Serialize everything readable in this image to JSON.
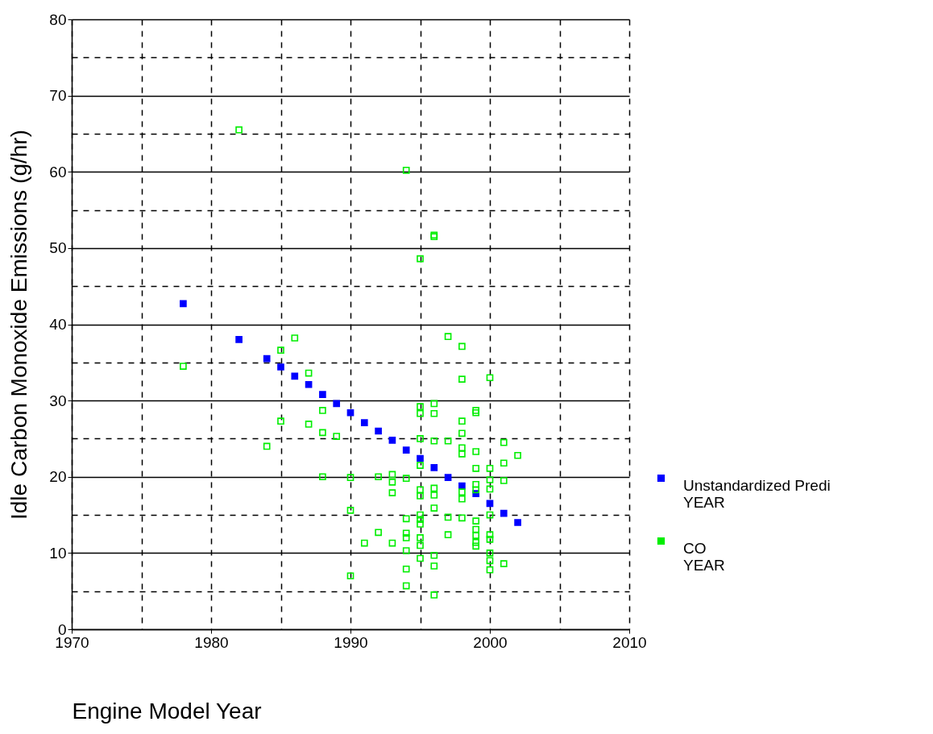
{
  "chart_data": {
    "type": "scatter",
    "xlabel": "Engine Model Year",
    "ylabel": "Idle Carbon Monoxide Emissions (g/hr)",
    "xlim": [
      1970,
      2010
    ],
    "xticks": [
      1970,
      1980,
      1990,
      2000,
      2010
    ],
    "ylim": [
      0,
      80
    ],
    "yticks": [
      0,
      10,
      20,
      30,
      40,
      50,
      60,
      70,
      80
    ],
    "grid": true,
    "legend": "right",
    "marker": "square",
    "series": [
      {
        "name": "Unstandardized Predi\nYEAR",
        "color": "#0000ff",
        "x": [
          1978,
          1982,
          1984,
          1985,
          1986,
          1987,
          1988,
          1989,
          1990,
          1991,
          1992,
          1993,
          1994,
          1995,
          1996,
          1997,
          1998,
          1999,
          2000,
          2001,
          2002
        ],
        "values": [
          42.7,
          38.0,
          35.5,
          34.4,
          33.2,
          32.1,
          30.8,
          29.6,
          28.4,
          27.1,
          26.0,
          24.8,
          23.5,
          22.4,
          21.2,
          19.9,
          18.8,
          17.8,
          16.5,
          15.2,
          14.0
        ]
      },
      {
        "name": "CO\nYEAR",
        "color": "#00ee00",
        "x": [
          1978,
          1982,
          1984,
          1985,
          1985,
          1986,
          1987,
          1987,
          1988,
          1988,
          1988,
          1989,
          1990,
          1990,
          1990,
          1991,
          1992,
          1992,
          1993,
          1993,
          1993,
          1993,
          1994,
          1994,
          1994,
          1994,
          1994,
          1994,
          1994,
          1994,
          1995,
          1995,
          1995,
          1995,
          1995,
          1995,
          1995,
          1995,
          1995,
          1995,
          1995,
          1995,
          1995,
          1996,
          1996,
          1996,
          1996,
          1996,
          1996,
          1996,
          1996,
          1996,
          1996,
          1996,
          1997,
          1997,
          1997,
          1997,
          1998,
          1998,
          1998,
          1998,
          1998,
          1998,
          1998,
          1998,
          1998,
          1999,
          1999,
          1999,
          1999,
          1999,
          1999,
          1999,
          1999,
          1999,
          1999,
          1999,
          2000,
          2000,
          2000,
          2000,
          2000,
          2000,
          2000,
          2000,
          2000,
          2000,
          2001,
          2001,
          2001,
          2001,
          2002
        ],
        "values": [
          34.5,
          65.5,
          24.0,
          36.6,
          27.3,
          38.2,
          33.6,
          26.9,
          28.7,
          25.8,
          20.0,
          25.3,
          19.9,
          15.6,
          7.0,
          11.3,
          20.0,
          12.7,
          20.3,
          19.3,
          17.9,
          11.3,
          60.2,
          19.8,
          14.5,
          12.6,
          12.0,
          10.3,
          7.9,
          5.7,
          48.6,
          29.2,
          28.3,
          25.0,
          21.5,
          18.3,
          17.5,
          15.0,
          14.4,
          13.8,
          12.0,
          11.0,
          9.3,
          51.7,
          51.5,
          29.6,
          28.3,
          24.7,
          18.5,
          17.6,
          15.9,
          9.7,
          8.3,
          4.5,
          38.4,
          24.7,
          14.7,
          12.4,
          37.1,
          32.8,
          27.3,
          25.7,
          23.8,
          23.0,
          18.0,
          17.1,
          14.6,
          28.7,
          28.4,
          23.3,
          21.1,
          19.0,
          18.3,
          14.2,
          13.1,
          12.3,
          11.4,
          10.9,
          33.0,
          21.1,
          19.6,
          18.4,
          15.0,
          12.4,
          11.8,
          10.0,
          9.0,
          7.8,
          24.5,
          21.8,
          19.5,
          8.6,
          22.8
        ]
      }
    ]
  }
}
